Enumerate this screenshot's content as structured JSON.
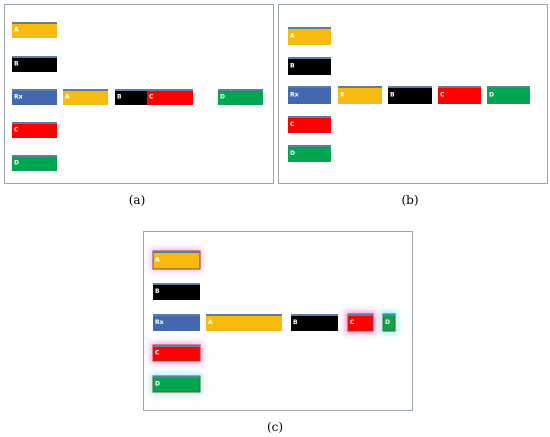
{
  "panels": [
    {
      "caption": "(a)",
      "labels": [
        "A",
        "B",
        "Rx",
        "A",
        "B",
        "C",
        "D",
        "C",
        "D"
      ]
    },
    {
      "caption": "(b)",
      "labels": [
        "A",
        "B",
        "Rx",
        "A",
        "B",
        "C",
        "D",
        "C",
        "D"
      ]
    },
    {
      "caption": "(c)",
      "labels": [
        "A",
        "B",
        "Rx",
        "A",
        "B",
        "C",
        "D",
        "C",
        "D"
      ]
    }
  ]
}
